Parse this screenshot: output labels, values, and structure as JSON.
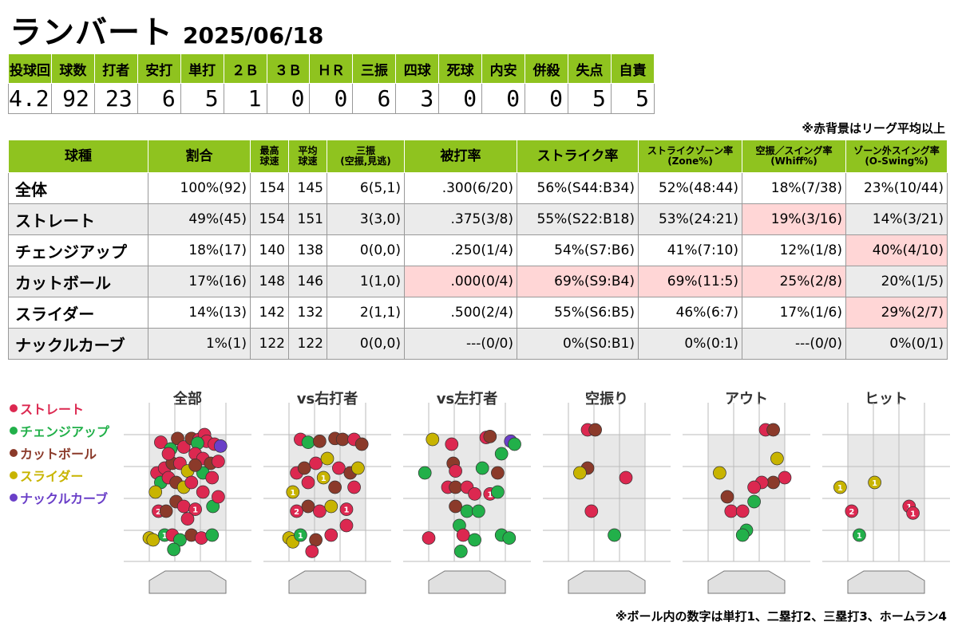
{
  "header": {
    "pitcher": "ランバート",
    "date": "2025/06/18"
  },
  "summary": {
    "headers": [
      "投球回",
      "球数",
      "打者",
      "安打",
      "単打",
      "２Ｂ",
      "３Ｂ",
      "ＨＲ",
      "三振",
      "四球",
      "死球",
      "内安",
      "併殺",
      "失点",
      "自責"
    ],
    "values": [
      "4.2",
      "92",
      "23",
      "6",
      "5",
      "1",
      "0",
      "0",
      "6",
      "3",
      "0",
      "0",
      "0",
      "5",
      "5"
    ]
  },
  "note_top": "※赤背景はリーグ平均以上",
  "pitch_table": {
    "headers": [
      "球種",
      "割合",
      "最高\n球速",
      "平均\n球速",
      "三振\n(空振,見逃)",
      "被打率",
      "ストライク率",
      "ストライクゾーン率\n(Zone%)",
      "空振／スイング率\n(Whiff%)",
      "ゾーン外スイング率\n(O-Swing%)"
    ],
    "rows": [
      {
        "name": "全体",
        "ratio": "100%(92)",
        "max": "154",
        "avg": "145",
        "k": "6(5,1)",
        "avg_against": ".300(6/20)",
        "strike": "56%(S44:B34)",
        "zone": "52%(48:44)",
        "whiff": "18%(7/38)",
        "oswing": "23%(10/44)",
        "hl": []
      },
      {
        "name": "ストレート",
        "ratio": "49%(45)",
        "max": "154",
        "avg": "151",
        "k": "3(3,0)",
        "avg_against": ".375(3/8)",
        "strike": "55%(S22:B18)",
        "zone": "53%(24:21)",
        "whiff": "19%(3/16)",
        "oswing": "14%(3/21)",
        "hl": [
          "whiff"
        ]
      },
      {
        "name": "チェンジアップ",
        "ratio": "18%(17)",
        "max": "140",
        "avg": "138",
        "k": "0(0,0)",
        "avg_against": ".250(1/4)",
        "strike": "54%(S7:B6)",
        "zone": "41%(7:10)",
        "whiff": "12%(1/8)",
        "oswing": "40%(4/10)",
        "hl": [
          "oswing"
        ]
      },
      {
        "name": "カットボール",
        "ratio": "17%(16)",
        "max": "148",
        "avg": "146",
        "k": "1(1,0)",
        "avg_against": ".000(0/4)",
        "strike": "69%(S9:B4)",
        "zone": "69%(11:5)",
        "whiff": "25%(2/8)",
        "oswing": "20%(1/5)",
        "hl": [
          "avg_against",
          "strike",
          "zone",
          "whiff"
        ]
      },
      {
        "name": "スライダー",
        "ratio": "14%(13)",
        "max": "142",
        "avg": "132",
        "k": "2(1,1)",
        "avg_against": ".500(2/4)",
        "strike": "55%(S6:B5)",
        "zone": "46%(6:7)",
        "whiff": "17%(1/6)",
        "oswing": "29%(2/7)",
        "hl": [
          "oswing"
        ]
      },
      {
        "name": "ナックルカーブ",
        "ratio": "1%(1)",
        "max": "122",
        "avg": "122",
        "k": "0(0,0)",
        "avg_against": "---(0/0)",
        "strike": "0%(S0:B1)",
        "zone": "0%(0:1)",
        "whiff": "---(0/0)",
        "oswing": "0%(0/1)",
        "hl": []
      }
    ]
  },
  "legend": [
    {
      "label": "ストレート",
      "color": "#dc2850"
    },
    {
      "label": "チェンジアップ",
      "color": "#22b04a"
    },
    {
      "label": "カットボール",
      "color": "#8b3a2a"
    },
    {
      "label": "スライダー",
      "color": "#c8b400"
    },
    {
      "label": "ナックルカーブ",
      "color": "#6a3fc8"
    }
  ],
  "note_bottom": "※ボール内の数字は単打1、二塁打2、三塁打3、ホームラン4",
  "chart_data": [
    {
      "type": "scatter",
      "title": "全部",
      "points": [
        {
          "x": 0.15,
          "y": 0.92,
          "p": "ストレート"
        },
        {
          "x": 0.28,
          "y": 0.85,
          "p": "チェンジアップ"
        },
        {
          "x": 0.37,
          "y": 0.96,
          "p": "カットボール"
        },
        {
          "x": 0.45,
          "y": 0.87,
          "p": "ストレート"
        },
        {
          "x": 0.55,
          "y": 0.96,
          "p": "カットボール"
        },
        {
          "x": 0.65,
          "y": 0.95,
          "p": "ストレート"
        },
        {
          "x": 0.72,
          "y": 1.0,
          "p": "ストレート"
        },
        {
          "x": 0.75,
          "y": 0.93,
          "p": "ストレート"
        },
        {
          "x": 0.85,
          "y": 0.9,
          "p": "ストレート"
        },
        {
          "x": 0.93,
          "y": 0.88,
          "p": "ナックルカーブ"
        },
        {
          "x": 0.63,
          "y": 0.91,
          "p": "チェンジアップ"
        },
        {
          "x": 0.1,
          "y": 0.6,
          "p": "ストレート"
        },
        {
          "x": 0.2,
          "y": 0.65,
          "p": "ストレート"
        },
        {
          "x": 0.3,
          "y": 0.7,
          "p": "カットボール"
        },
        {
          "x": 0.4,
          "y": 0.7,
          "p": "ストレート"
        },
        {
          "x": 0.5,
          "y": 0.62,
          "p": "スライダー"
        },
        {
          "x": 0.6,
          "y": 0.8,
          "p": "ストレート"
        },
        {
          "x": 0.7,
          "y": 0.75,
          "p": "ストレート"
        },
        {
          "x": 0.8,
          "y": 0.7,
          "p": "カットボール"
        },
        {
          "x": 0.9,
          "y": 0.72,
          "p": "ストレート"
        },
        {
          "x": 0.15,
          "y": 0.5,
          "p": "チェンジアップ"
        },
        {
          "x": 0.08,
          "y": 0.4,
          "p": "スライダー"
        },
        {
          "x": 0.25,
          "y": 0.55,
          "p": "ストレート"
        },
        {
          "x": 0.35,
          "y": 0.5,
          "p": "カットボール"
        },
        {
          "x": 0.45,
          "y": 0.45,
          "p": "スライダー"
        },
        {
          "x": 0.55,
          "y": 0.5,
          "p": "ストレート"
        },
        {
          "x": 0.7,
          "y": 0.6,
          "p": "チェンジアップ"
        },
        {
          "x": 0.82,
          "y": 0.55,
          "p": "ストレート"
        },
        {
          "x": 0.12,
          "y": 0.2,
          "p": "ストレート",
          "h": "2"
        },
        {
          "x": 0.22,
          "y": 0.2,
          "p": "カットボール"
        },
        {
          "x": 0.35,
          "y": 0.3,
          "p": "カットボール"
        },
        {
          "x": 0.45,
          "y": 0.25,
          "p": "ストレート"
        },
        {
          "x": 0.6,
          "y": 0.22,
          "p": "ストレート",
          "h": "1"
        },
        {
          "x": 0.7,
          "y": 0.4,
          "p": "ストレート"
        },
        {
          "x": 0.83,
          "y": 0.25,
          "p": "チェンジアップ"
        },
        {
          "x": 0.9,
          "y": 0.35,
          "p": "ストレート"
        },
        {
          "x": 0.5,
          "y": 0.12,
          "p": "ストレート"
        },
        {
          "x": 0.0,
          "y": -0.08,
          "p": "スライダー"
        },
        {
          "x": 0.05,
          "y": -0.1,
          "p": "スライダー"
        },
        {
          "x": 0.2,
          "y": -0.05,
          "p": "チェンジアップ",
          "h": "1"
        },
        {
          "x": 0.3,
          "y": -0.05,
          "p": "ストレート"
        },
        {
          "x": 0.4,
          "y": -0.1,
          "p": "チェンジアップ"
        },
        {
          "x": 0.55,
          "y": -0.05,
          "p": "カットボール"
        },
        {
          "x": 0.68,
          "y": -0.08,
          "p": "ストレート"
        },
        {
          "x": 0.82,
          "y": -0.05,
          "p": "チェンジアップ"
        },
        {
          "x": 0.32,
          "y": -0.2,
          "p": "チェンジアップ"
        },
        {
          "x": 0.25,
          "y": 0.8,
          "p": "ストレート"
        },
        {
          "x": 0.6,
          "y": 0.68,
          "p": "カットボール"
        }
      ]
    },
    {
      "type": "scatter",
      "title": "vs右打者",
      "points": [
        {
          "x": 0.15,
          "y": 0.95,
          "p": "ストレート"
        },
        {
          "x": 0.25,
          "y": 0.92,
          "p": "チェンジアップ"
        },
        {
          "x": 0.4,
          "y": 0.93,
          "p": "カットボール"
        },
        {
          "x": 0.6,
          "y": 0.96,
          "p": "カットボール"
        },
        {
          "x": 0.7,
          "y": 0.95,
          "p": "カットボール"
        },
        {
          "x": 0.85,
          "y": 0.95,
          "p": "ストレート"
        },
        {
          "x": 0.95,
          "y": 0.9,
          "p": "カットボール"
        },
        {
          "x": 0.1,
          "y": 0.6,
          "p": "ストレート"
        },
        {
          "x": 0.2,
          "y": 0.65,
          "p": "カットボール"
        },
        {
          "x": 0.35,
          "y": 0.7,
          "p": "ストレート"
        },
        {
          "x": 0.5,
          "y": 0.75,
          "p": "スライダー"
        },
        {
          "x": 0.65,
          "y": 0.65,
          "p": "ストレート"
        },
        {
          "x": 0.8,
          "y": 0.6,
          "p": "カットボール"
        },
        {
          "x": 0.9,
          "y": 0.65,
          "p": "スライダー"
        },
        {
          "x": 0.05,
          "y": 0.4,
          "p": "スライダー",
          "h": "1"
        },
        {
          "x": 0.25,
          "y": 0.5,
          "p": "ストレート"
        },
        {
          "x": 0.45,
          "y": 0.55,
          "p": "スライダー",
          "h": "1"
        },
        {
          "x": 0.6,
          "y": 0.45,
          "p": "カットボール"
        },
        {
          "x": 0.85,
          "y": 0.45,
          "p": "ストレート"
        },
        {
          "x": 0.1,
          "y": 0.2,
          "p": "ストレート",
          "h": "2"
        },
        {
          "x": 0.25,
          "y": 0.25,
          "p": "カットボール"
        },
        {
          "x": 0.4,
          "y": 0.2,
          "p": "ストレート"
        },
        {
          "x": 0.55,
          "y": 0.25,
          "p": "スライダー"
        },
        {
          "x": 0.75,
          "y": 0.22,
          "p": "ストレート",
          "h": "1"
        },
        {
          "x": 0.75,
          "y": 0.05,
          "p": "ストレート"
        },
        {
          "x": 0.0,
          "y": -0.08,
          "p": "スライダー"
        },
        {
          "x": 0.05,
          "y": -0.12,
          "p": "スライダー"
        },
        {
          "x": 0.15,
          "y": -0.05,
          "p": "チェンジアップ",
          "h": "1"
        },
        {
          "x": 0.35,
          "y": -0.1,
          "p": "カットボール"
        },
        {
          "x": 0.55,
          "y": -0.05,
          "p": "ストレート"
        },
        {
          "x": 0.3,
          "y": -0.22,
          "p": "ストレート"
        }
      ]
    },
    {
      "type": "scatter",
      "title": "vs左打者",
      "points": [
        {
          "x": 0.05,
          "y": 0.95,
          "p": "スライダー"
        },
        {
          "x": 0.3,
          "y": 0.9,
          "p": "ストレート"
        },
        {
          "x": 0.75,
          "y": 0.97,
          "p": "ストレート"
        },
        {
          "x": 0.8,
          "y": 0.98,
          "p": "カットボール"
        },
        {
          "x": 1.07,
          "y": 0.93,
          "p": "ナックルカーブ"
        },
        {
          "x": 1.12,
          "y": 0.9,
          "p": "チェンジアップ"
        },
        {
          "x": 0.95,
          "y": 0.8,
          "p": "チェンジアップ"
        },
        {
          "x": 0.32,
          "y": 0.7,
          "p": "カットボール"
        },
        {
          "x": 0.7,
          "y": 0.65,
          "p": "チェンジアップ"
        },
        {
          "x": 0.9,
          "y": 0.6,
          "p": "カットボール"
        },
        {
          "x": -0.05,
          "y": 0.6,
          "p": "チェンジアップ"
        },
        {
          "x": 0.35,
          "y": 0.62,
          "p": "ストレート"
        },
        {
          "x": 0.25,
          "y": 0.45,
          "p": "ストレート"
        },
        {
          "x": 0.35,
          "y": 0.45,
          "p": "カットボール"
        },
        {
          "x": 0.5,
          "y": 0.45,
          "p": "ストレート"
        },
        {
          "x": 0.6,
          "y": 0.38,
          "p": "ストレート"
        },
        {
          "x": 0.8,
          "y": 0.38,
          "p": "ストレート",
          "h": "1"
        },
        {
          "x": 0.9,
          "y": 0.4,
          "p": "チェンジアップ"
        },
        {
          "x": 0.35,
          "y": 0.25,
          "p": "カットボール"
        },
        {
          "x": 0.5,
          "y": 0.2,
          "p": "チェンジアップ"
        },
        {
          "x": 0.65,
          "y": 0.2,
          "p": "チェンジアップ"
        },
        {
          "x": 0.4,
          "y": 0.05,
          "p": "チェンジアップ"
        },
        {
          "x": 0.0,
          "y": -0.08,
          "p": "ストレート"
        },
        {
          "x": 0.45,
          "y": -0.05,
          "p": "ストレート"
        },
        {
          "x": 0.6,
          "y": -0.1,
          "p": "チェンジアップ"
        },
        {
          "x": 0.95,
          "y": -0.05,
          "p": "チェンジアップ"
        },
        {
          "x": 1.05,
          "y": -0.08,
          "p": "チェンジアップ"
        },
        {
          "x": 0.42,
          "y": -0.22,
          "p": "チェンジアップ"
        }
      ]
    },
    {
      "type": "scatter",
      "title": "空振り",
      "points": [
        {
          "x": 0.25,
          "y": 1.05,
          "p": "ストレート"
        },
        {
          "x": 0.35,
          "y": 1.05,
          "p": "カットボール"
        },
        {
          "x": 0.25,
          "y": 0.65,
          "p": "カットボール"
        },
        {
          "x": 0.15,
          "y": 0.6,
          "p": "スライダー"
        },
        {
          "x": 0.75,
          "y": 0.55,
          "p": "ストレート"
        },
        {
          "x": 0.3,
          "y": 0.2,
          "p": "ストレート"
        },
        {
          "x": 0.6,
          "y": -0.05,
          "p": "チェンジアップ"
        }
      ]
    },
    {
      "type": "scatter",
      "title": "アウト",
      "points": [
        {
          "x": 0.75,
          "y": 1.05,
          "p": "ストレート"
        },
        {
          "x": 0.85,
          "y": 1.05,
          "p": "カットボール"
        },
        {
          "x": 0.9,
          "y": 0.75,
          "p": "スライダー"
        },
        {
          "x": 0.15,
          "y": 0.6,
          "p": "スライダー"
        },
        {
          "x": 1.0,
          "y": 0.55,
          "p": "ストレート"
        },
        {
          "x": 0.85,
          "y": 0.5,
          "p": "カットボール"
        },
        {
          "x": 0.7,
          "y": 0.5,
          "p": "ストレート"
        },
        {
          "x": 0.6,
          "y": 0.45,
          "p": "ストレート"
        },
        {
          "x": 0.25,
          "y": 0.35,
          "p": "カットボール"
        },
        {
          "x": 0.6,
          "y": 0.3,
          "p": "チェンジアップ"
        },
        {
          "x": 0.3,
          "y": 0.2,
          "p": "ストレート"
        },
        {
          "x": 0.45,
          "y": 0.2,
          "p": "ストレート"
        },
        {
          "x": 0.5,
          "y": 0.0,
          "p": "チェンジアップ"
        },
        {
          "x": 0.45,
          "y": -0.05,
          "p": "チェンジアップ"
        }
      ]
    },
    {
      "type": "scatter",
      "title": "ヒット",
      "points": [
        {
          "x": -0.1,
          "y": 0.45,
          "p": "スライダー",
          "h": "1"
        },
        {
          "x": 0.35,
          "y": 0.5,
          "p": "スライダー",
          "h": "1"
        },
        {
          "x": 0.05,
          "y": 0.2,
          "p": "ストレート",
          "h": "2"
        },
        {
          "x": 0.8,
          "y": 0.25,
          "p": "ストレート",
          "h": "1"
        },
        {
          "x": 0.85,
          "y": 0.18,
          "p": "ストレート",
          "h": "1"
        },
        {
          "x": 0.15,
          "y": -0.05,
          "p": "チェンジアップ",
          "h": "1"
        }
      ]
    }
  ]
}
